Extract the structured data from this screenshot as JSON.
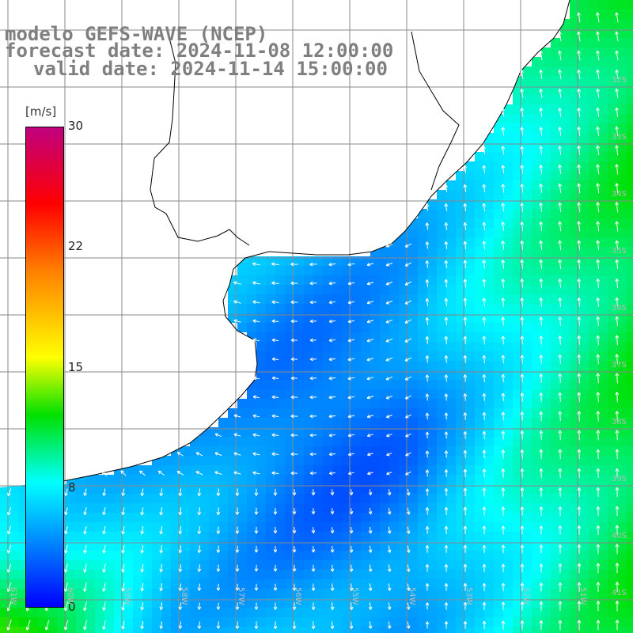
{
  "titles": {
    "line1": "modelo GEFS-WAVE (NCEP)",
    "line2": "forecast date: 2024-11-08 12:00:00",
    "line3": "valid date: 2024-11-14 15:00:00"
  },
  "colorbar": {
    "units": "[m/s]",
    "ticks": [
      "30",
      "22",
      "15",
      "8",
      "0"
    ],
    "colors": [
      "#c0007f",
      "#ff0000",
      "#ff8000",
      "#ffff00",
      "#00e000",
      "#00ffff",
      "#00a0ff",
      "#0000ff"
    ]
  },
  "lat_labels": [
    "32S",
    "33S",
    "34S",
    "35S",
    "36S",
    "37S",
    "38S",
    "39S",
    "40S",
    "41S"
  ],
  "lon_labels": [
    "61W",
    "60W",
    "59W",
    "58W",
    "57W",
    "56W",
    "55W",
    "54W",
    "53W",
    "52W",
    "51W"
  ],
  "colors": {
    "grid": "#888888",
    "land": "#ffffff",
    "coast": "#000000",
    "arrow": "#ffffff"
  }
}
